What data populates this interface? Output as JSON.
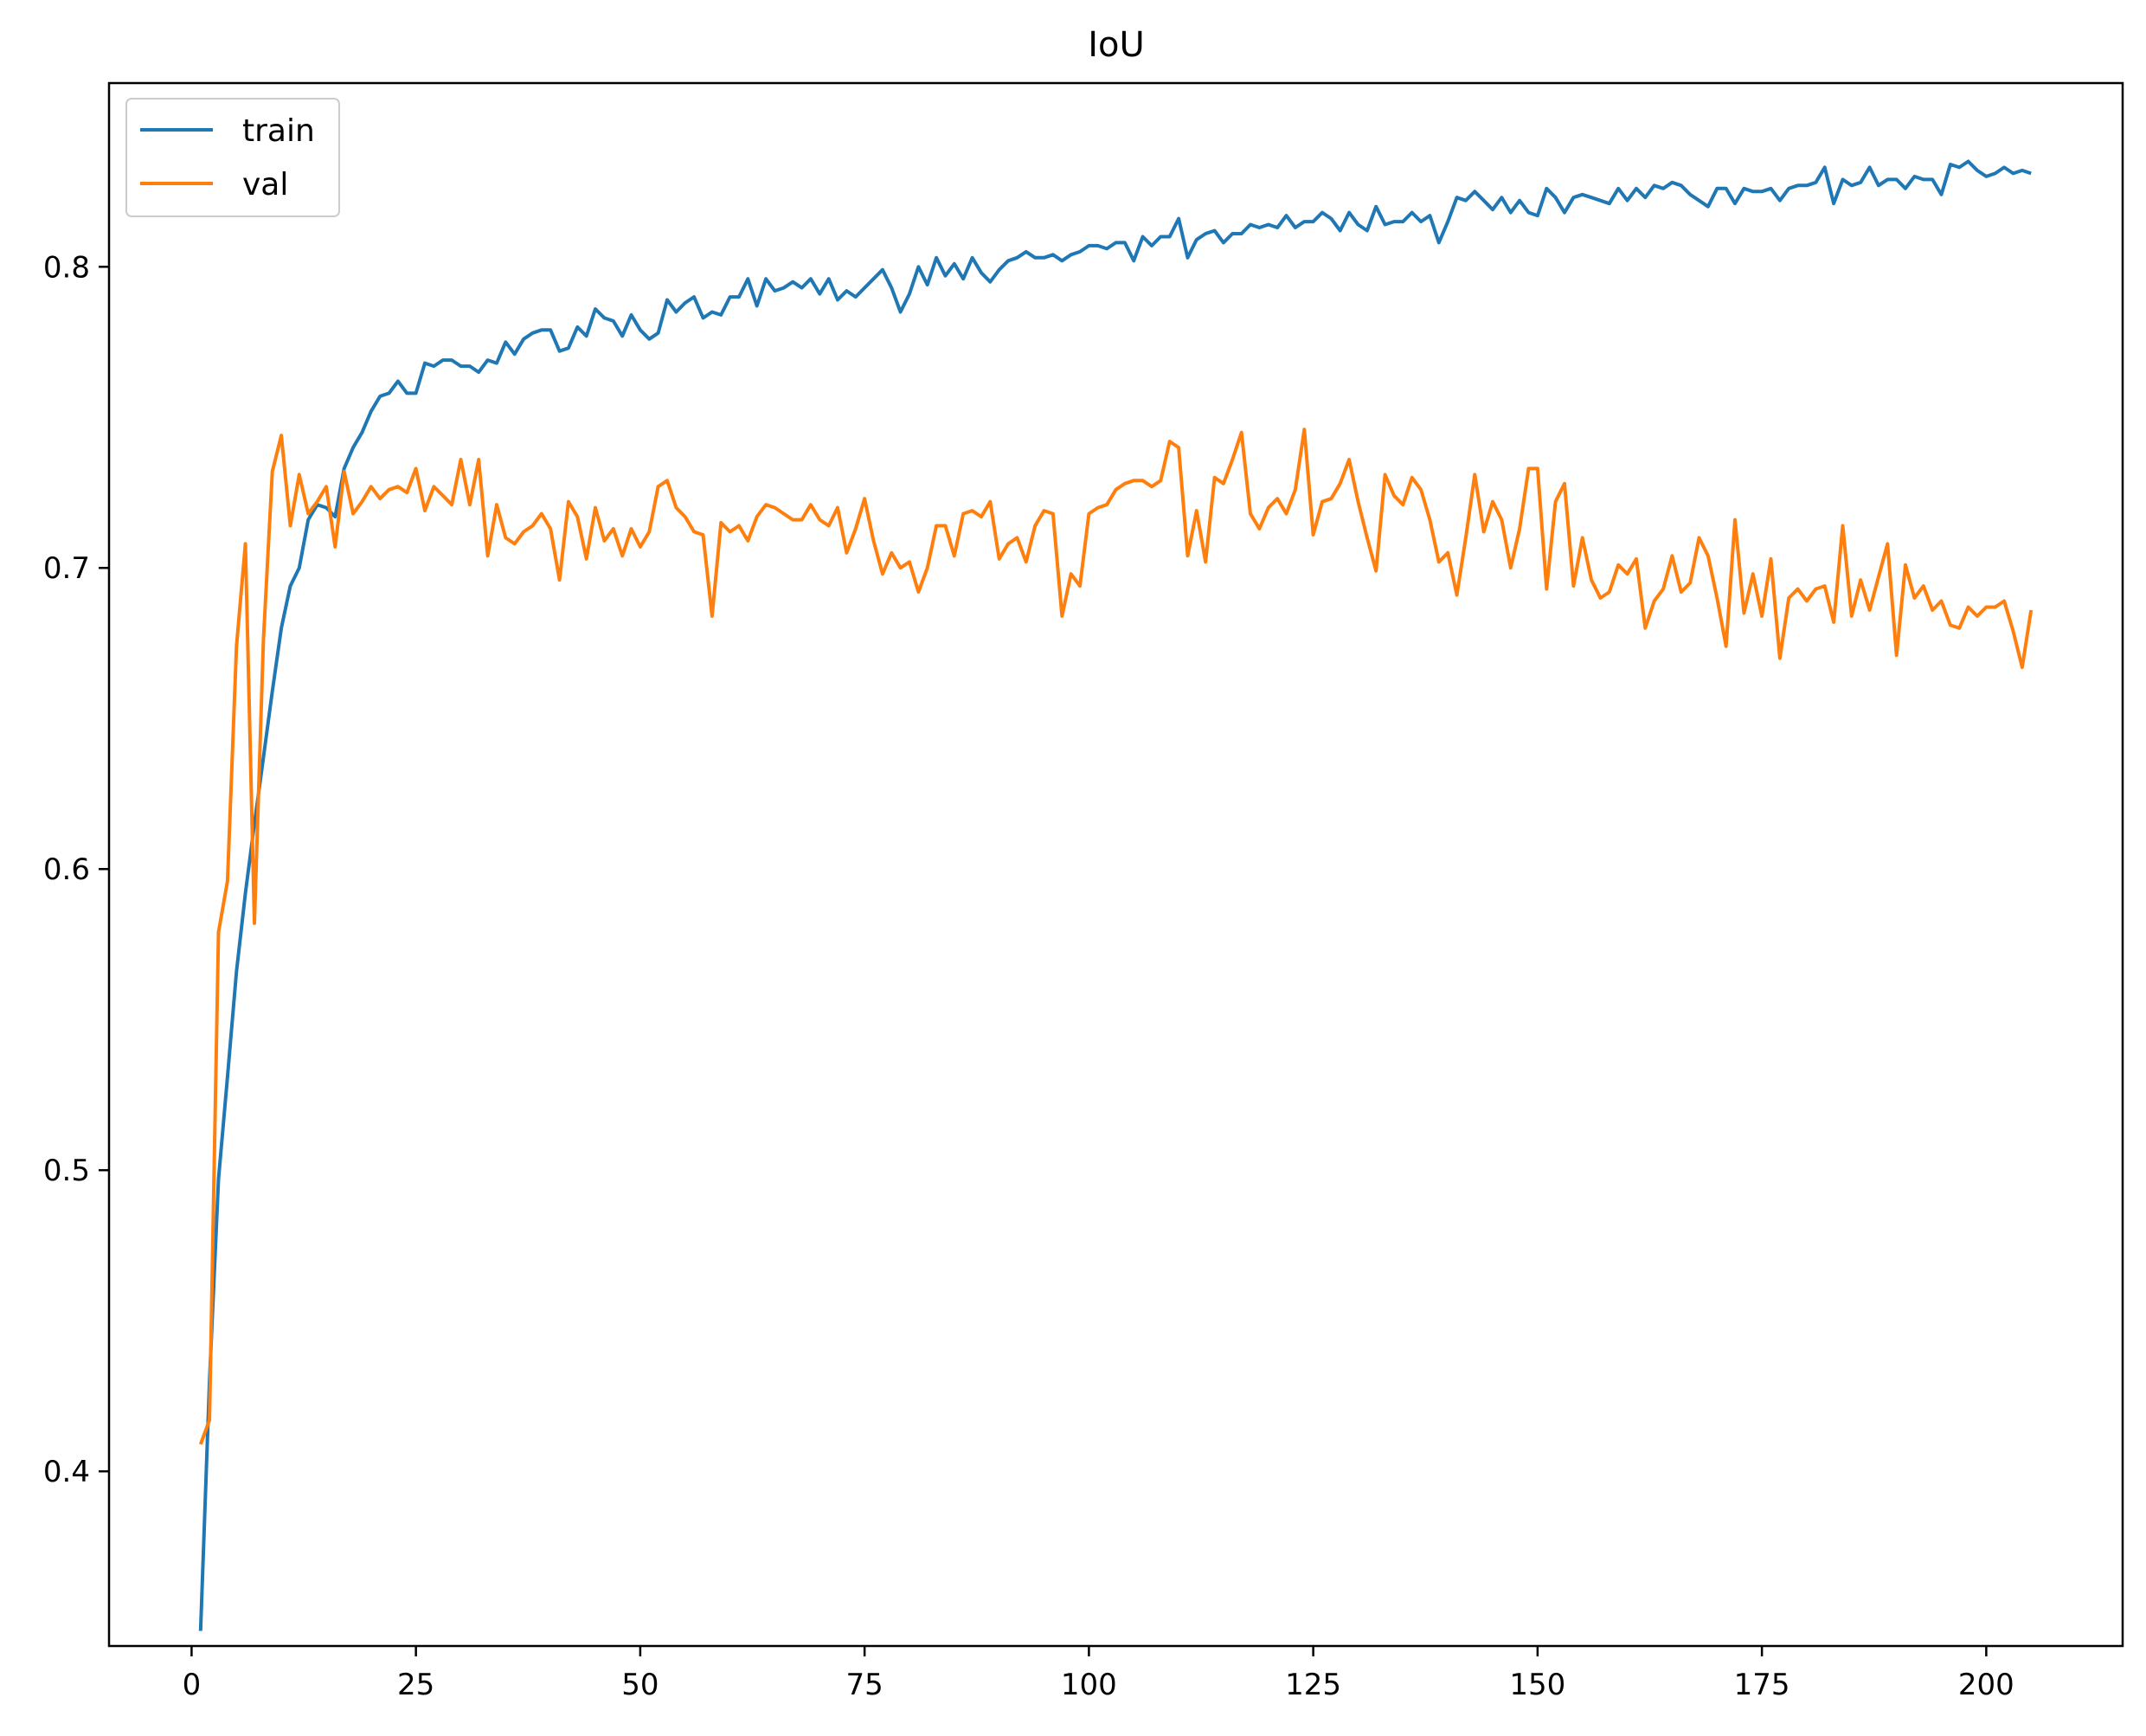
{
  "chart_data": {
    "type": "line",
    "title": "IoU",
    "xlabel": "",
    "ylabel": "",
    "xlim": [
      -9.2,
      215.2
    ],
    "ylim": [
      0.342,
      0.861
    ],
    "xticks": [
      0,
      25,
      50,
      75,
      100,
      125,
      150,
      175,
      200
    ],
    "yticks": [
      0.4,
      0.5,
      0.6,
      0.7,
      0.8
    ],
    "grid": false,
    "legend": "top-left",
    "x_start": 1,
    "series": [
      {
        "name": "train",
        "color": "#1f77b4",
        "values": [
          0.347,
          0.43,
          0.497,
          0.531,
          0.566,
          0.592,
          0.615,
          0.637,
          0.659,
          0.68,
          0.694,
          0.7,
          0.716,
          0.721,
          0.72,
          0.717,
          0.733,
          0.74,
          0.745,
          0.752,
          0.757,
          0.758,
          0.762,
          0.758,
          0.758,
          0.768,
          0.767,
          0.769,
          0.769,
          0.767,
          0.767,
          0.765,
          0.769,
          0.768,
          0.775,
          0.771,
          0.776,
          0.778,
          0.779,
          0.779,
          0.772,
          0.773,
          0.78,
          0.777,
          0.786,
          0.783,
          0.782,
          0.777,
          0.784,
          0.779,
          0.776,
          0.778,
          0.789,
          0.785,
          0.788,
          0.79,
          0.783,
          0.785,
          0.784,
          0.79,
          0.79,
          0.796,
          0.787,
          0.796,
          0.792,
          0.793,
          0.795,
          0.793,
          0.796,
          0.791,
          0.796,
          0.789,
          0.792,
          0.79,
          0.793,
          0.796,
          0.799,
          0.793,
          0.785,
          0.791,
          0.8,
          0.794,
          0.803,
          0.797,
          0.801,
          0.796,
          0.803,
          0.798,
          0.795,
          0.799,
          0.802,
          0.803,
          0.805,
          0.803,
          0.803,
          0.804,
          0.802,
          0.804,
          0.805,
          0.807,
          0.807,
          0.806,
          0.808,
          0.808,
          0.802,
          0.81,
          0.807,
          0.81,
          0.81,
          0.816,
          0.803,
          0.809,
          0.811,
          0.812,
          0.808,
          0.811,
          0.811,
          0.814,
          0.813,
          0.814,
          0.813,
          0.817,
          0.813,
          0.815,
          0.815,
          0.818,
          0.816,
          0.812,
          0.818,
          0.814,
          0.812,
          0.82,
          0.814,
          0.815,
          0.815,
          0.818,
          0.815,
          0.817,
          0.808,
          0.815,
          0.823,
          0.822,
          0.825,
          0.822,
          0.819,
          0.823,
          0.818,
          0.822,
          0.818,
          0.817,
          0.826,
          0.823,
          0.818,
          0.823,
          0.824,
          0.823,
          0.822,
          0.821,
          0.826,
          0.822,
          0.826,
          0.823,
          0.827,
          0.826,
          0.828,
          0.827,
          0.824,
          0.822,
          0.82,
          0.826,
          0.826,
          0.821,
          0.826,
          0.825,
          0.825,
          0.826,
          0.822,
          0.826,
          0.827,
          0.827,
          0.828,
          0.833,
          0.821,
          0.829,
          0.827,
          0.828,
          0.833,
          0.827,
          0.829,
          0.829,
          0.826,
          0.83,
          0.829,
          0.829,
          0.824,
          0.834,
          0.833,
          0.835,
          0.832,
          0.83,
          0.831,
          0.833,
          0.831,
          0.832,
          0.831
        ]
      },
      {
        "name": "val",
        "color": "#ff7f0e",
        "values": [
          0.409,
          0.417,
          0.579,
          0.596,
          0.674,
          0.708,
          0.582,
          0.676,
          0.732,
          0.744,
          0.714,
          0.731,
          0.718,
          0.722,
          0.727,
          0.707,
          0.732,
          0.718,
          0.722,
          0.727,
          0.723,
          0.726,
          0.727,
          0.725,
          0.733,
          0.719,
          0.727,
          0.724,
          0.721,
          0.736,
          0.721,
          0.736,
          0.704,
          0.721,
          0.71,
          0.708,
          0.712,
          0.714,
          0.718,
          0.713,
          0.696,
          0.722,
          0.717,
          0.703,
          0.72,
          0.709,
          0.713,
          0.704,
          0.713,
          0.707,
          0.712,
          0.727,
          0.729,
          0.72,
          0.717,
          0.712,
          0.711,
          0.684,
          0.715,
          0.712,
          0.714,
          0.709,
          0.717,
          0.721,
          0.72,
          0.718,
          0.716,
          0.716,
          0.721,
          0.716,
          0.714,
          0.72,
          0.705,
          0.713,
          0.723,
          0.709,
          0.698,
          0.705,
          0.7,
          0.702,
          0.692,
          0.7,
          0.714,
          0.714,
          0.704,
          0.718,
          0.719,
          0.717,
          0.722,
          0.703,
          0.708,
          0.71,
          0.702,
          0.714,
          0.719,
          0.718,
          0.684,
          0.698,
          0.694,
          0.718,
          0.72,
          0.721,
          0.726,
          0.728,
          0.729,
          0.729,
          0.727,
          0.729,
          0.742,
          0.74,
          0.704,
          0.719,
          0.702,
          0.73,
          0.728,
          0.736,
          0.745,
          0.718,
          0.713,
          0.72,
          0.723,
          0.718,
          0.726,
          0.746,
          0.711,
          0.722,
          0.723,
          0.728,
          0.736,
          0.722,
          0.71,
          0.699,
          0.731,
          0.724,
          0.721,
          0.73,
          0.726,
          0.716,
          0.702,
          0.705,
          0.691,
          0.71,
          0.731,
          0.712,
          0.722,
          0.716,
          0.7,
          0.713,
          0.733,
          0.733,
          0.693,
          0.722,
          0.728,
          0.694,
          0.71,
          0.696,
          0.69,
          0.692,
          0.701,
          0.698,
          0.703,
          0.68,
          0.689,
          0.693,
          0.704,
          0.692,
          0.695,
          0.71,
          0.704,
          0.69,
          0.674,
          0.716,
          0.685,
          0.698,
          0.684,
          0.703,
          0.67,
          0.69,
          0.693,
          0.689,
          0.693,
          0.694,
          0.682,
          0.714,
          0.684,
          0.696,
          0.686,
          0.697,
          0.708,
          0.671,
          0.701,
          0.69,
          0.694,
          0.686,
          0.689,
          0.681,
          0.68,
          0.687,
          0.684,
          0.687,
          0.687,
          0.689,
          0.679,
          0.667,
          0.686
        ]
      }
    ]
  }
}
